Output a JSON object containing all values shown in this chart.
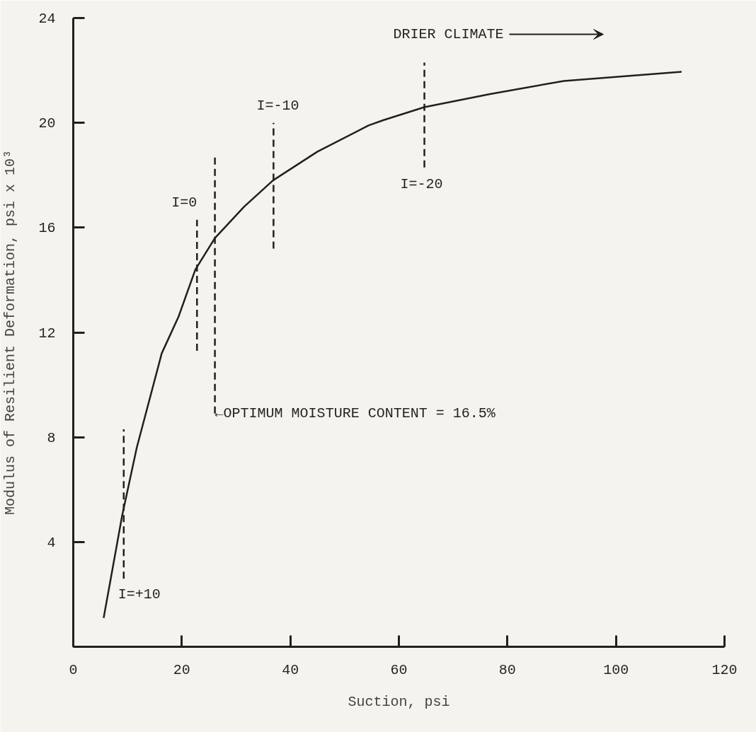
{
  "chart_data": {
    "type": "line",
    "xlabel": "Suction, psi",
    "ylabel": "Modulus of Resilient Deformation, psi x 10³",
    "xlim": [
      0,
      120
    ],
    "xticks": [
      0,
      20,
      40,
      60,
      80,
      100,
      120
    ],
    "ylim": [
      0,
      24
    ],
    "yticks": [
      {
        "value": 0,
        "label": null
      },
      4,
      8,
      12,
      16,
      20,
      24
    ],
    "grid": false,
    "marker": "none",
    "series": [
      {
        "color": "#231f20",
        "line_style": "solid",
        "x": [
          5.6,
          9.0,
          11.7,
          16.3,
          19.4,
          22.5,
          26.1,
          31.5,
          36.8,
          45,
          54.4,
          57.1,
          64.7,
          76.8,
          90.4,
          112.1
        ],
        "values": [
          1.1,
          5.0,
          7.6,
          11.2,
          12.6,
          14.4,
          15.6,
          16.8,
          17.8,
          18.9,
          19.9,
          20.1,
          20.6,
          21.1,
          21.6,
          21.95
        ]
      },
      {
        "color": "#231f20",
        "line_style": "dashed",
        "x": [
          9.3,
          9.3
        ],
        "values": [
          2.6,
          8.3
        ]
      },
      {
        "color": "#231f20",
        "line_style": "dashed",
        "x": [
          22.8,
          22.8
        ],
        "values": [
          11.3,
          16.3
        ]
      },
      {
        "color": "#231f20",
        "line_style": "dashed",
        "x": [
          26.1,
          26.1
        ],
        "values": [
          8.9,
          18.8
        ]
      },
      {
        "color": "#231f20",
        "line_style": "dashed",
        "x": [
          36.9,
          36.9
        ],
        "values": [
          15.2,
          20.0
        ]
      },
      {
        "color": "#231f20",
        "line_style": "dashed",
        "x": [
          64.7,
          64.7
        ],
        "values": [
          18.3,
          22.3
        ]
      }
    ],
    "annotations": [
      {
        "text": "I=+10",
        "x": 9.3,
        "y": 2.6
      },
      {
        "text": "I=0",
        "x": 22.8,
        "y": 16.3
      },
      {
        "text": "I=-10",
        "x": 36.9,
        "y": 20.0
      },
      {
        "text": "I=-20",
        "x": 64.7,
        "y": 18.3
      },
      {
        "text": "←OPTIMUM MOISTURE CONTENT = 16.5%",
        "x": 26.1,
        "y": 8.9
      },
      "DRIER CLIMATE"
    ]
  }
}
